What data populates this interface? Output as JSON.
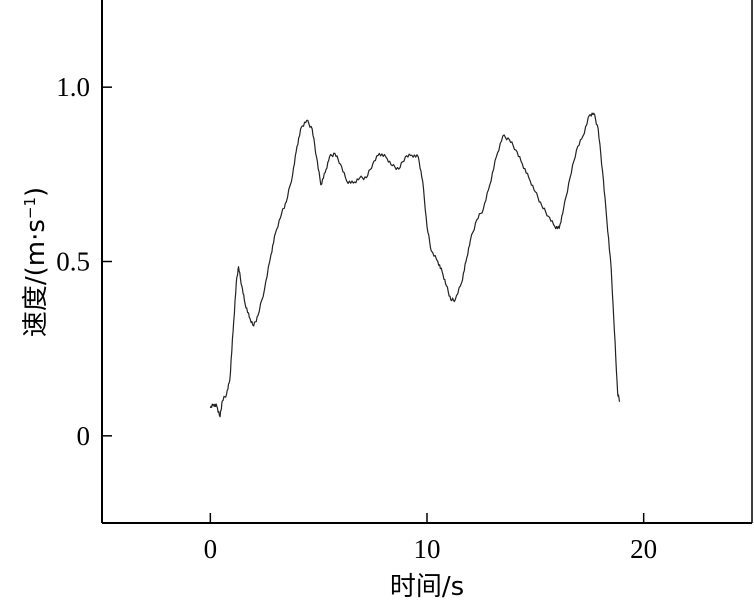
{
  "chart_data": {
    "type": "line",
    "title": "",
    "xlabel": "时间/s",
    "ylabel_main": "速度/(m·s",
    "ylabel_exp": "−1",
    "ylabel_close": ")",
    "xlim": [
      -5,
      25
    ],
    "ylim": [
      -0.25,
      1.25
    ],
    "x_ticks": [
      0,
      10,
      20
    ],
    "x_tick_labels": [
      "0",
      "10",
      "20"
    ],
    "y_ticks": [
      0,
      0.5,
      1.0
    ],
    "y_tick_labels": [
      "0",
      "0.5",
      "1.0"
    ],
    "grid": false,
    "legend": "none",
    "series": [
      {
        "color": "#222222",
        "points": [
          [
            0.0,
            0.08
          ],
          [
            0.15,
            0.09
          ],
          [
            0.3,
            0.085
          ],
          [
            0.45,
            0.055
          ],
          [
            0.55,
            0.1
          ],
          [
            0.75,
            0.12
          ],
          [
            0.9,
            0.16
          ],
          [
            1.05,
            0.3
          ],
          [
            1.2,
            0.44
          ],
          [
            1.3,
            0.485
          ],
          [
            1.45,
            0.43
          ],
          [
            1.6,
            0.38
          ],
          [
            1.8,
            0.34
          ],
          [
            2.0,
            0.315
          ],
          [
            2.2,
            0.345
          ],
          [
            2.5,
            0.42
          ],
          [
            2.8,
            0.52
          ],
          [
            3.0,
            0.58
          ],
          [
            3.3,
            0.64
          ],
          [
            3.5,
            0.67
          ],
          [
            3.8,
            0.75
          ],
          [
            4.0,
            0.83
          ],
          [
            4.2,
            0.885
          ],
          [
            4.45,
            0.905
          ],
          [
            4.7,
            0.88
          ],
          [
            4.9,
            0.8
          ],
          [
            5.1,
            0.72
          ],
          [
            5.3,
            0.755
          ],
          [
            5.5,
            0.8
          ],
          [
            5.75,
            0.81
          ],
          [
            6.0,
            0.78
          ],
          [
            6.3,
            0.73
          ],
          [
            6.6,
            0.725
          ],
          [
            6.9,
            0.74
          ],
          [
            7.2,
            0.74
          ],
          [
            7.5,
            0.78
          ],
          [
            7.8,
            0.81
          ],
          [
            8.1,
            0.8
          ],
          [
            8.4,
            0.775
          ],
          [
            8.7,
            0.765
          ],
          [
            9.0,
            0.8
          ],
          [
            9.3,
            0.805
          ],
          [
            9.6,
            0.8
          ],
          [
            9.8,
            0.73
          ],
          [
            10.0,
            0.6
          ],
          [
            10.2,
            0.53
          ],
          [
            10.5,
            0.5
          ],
          [
            10.7,
            0.47
          ],
          [
            10.9,
            0.43
          ],
          [
            11.1,
            0.39
          ],
          [
            11.3,
            0.39
          ],
          [
            11.6,
            0.44
          ],
          [
            11.8,
            0.5
          ],
          [
            12.0,
            0.56
          ],
          [
            12.3,
            0.62
          ],
          [
            12.6,
            0.65
          ],
          [
            12.9,
            0.72
          ],
          [
            13.2,
            0.8
          ],
          [
            13.5,
            0.86
          ],
          [
            13.8,
            0.85
          ],
          [
            14.1,
            0.82
          ],
          [
            14.4,
            0.78
          ],
          [
            14.7,
            0.74
          ],
          [
            15.0,
            0.7
          ],
          [
            15.3,
            0.66
          ],
          [
            15.6,
            0.63
          ],
          [
            15.9,
            0.6
          ],
          [
            16.1,
            0.595
          ],
          [
            16.3,
            0.65
          ],
          [
            16.6,
            0.74
          ],
          [
            16.9,
            0.82
          ],
          [
            17.2,
            0.86
          ],
          [
            17.5,
            0.92
          ],
          [
            17.7,
            0.925
          ],
          [
            17.9,
            0.88
          ],
          [
            18.1,
            0.76
          ],
          [
            18.3,
            0.62
          ],
          [
            18.5,
            0.48
          ],
          [
            18.65,
            0.3
          ],
          [
            18.8,
            0.12
          ],
          [
            18.9,
            0.1
          ]
        ]
      }
    ]
  }
}
